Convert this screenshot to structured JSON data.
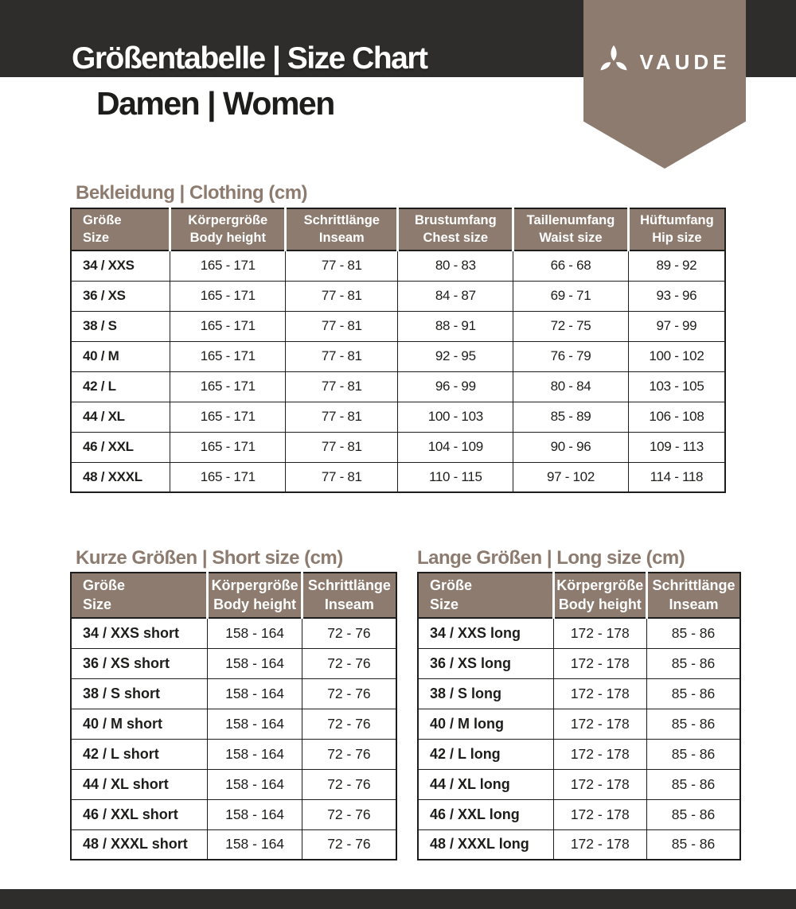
{
  "header": {
    "title": "Größentabelle | Size Chart",
    "subtitle": "Damen | Women",
    "brand": "VAUDE"
  },
  "colors": {
    "band_dark": "#2e2d2b",
    "ribbon_taupe": "#8c7b6e",
    "text_dark": "#1d1d1b",
    "header_text": "#ffffff"
  },
  "tables": {
    "clothing": {
      "title": "Bekleidung | Clothing (cm)",
      "columns": [
        {
          "de": "Größe",
          "en": "Size"
        },
        {
          "de": "Körpergröße",
          "en": "Body height"
        },
        {
          "de": "Schrittlänge",
          "en": "Inseam"
        },
        {
          "de": "Brustumfang",
          "en": "Chest size"
        },
        {
          "de": "Taillenumfang",
          "en": "Waist size"
        },
        {
          "de": "Hüftumfang",
          "en": "Hip size"
        }
      ],
      "rows": [
        [
          "34 / XXS",
          "165 - 171",
          "77 - 81",
          "80 - 83",
          "66 - 68",
          "89 - 92"
        ],
        [
          "36 / XS",
          "165 - 171",
          "77 - 81",
          "84 - 87",
          "69 - 71",
          "93 - 96"
        ],
        [
          "38 / S",
          "165 - 171",
          "77 - 81",
          "88 - 91",
          "72 - 75",
          "97 - 99"
        ],
        [
          "40 / M",
          "165 - 171",
          "77 - 81",
          "92 - 95",
          "76 - 79",
          "100 - 102"
        ],
        [
          "42 / L",
          "165 - 171",
          "77 - 81",
          "96 - 99",
          "80 - 84",
          "103 - 105"
        ],
        [
          "44 / XL",
          "165 - 171",
          "77 - 81",
          "100 - 103",
          "85 - 89",
          "106 - 108"
        ],
        [
          "46 / XXL",
          "165 - 171",
          "77 - 81",
          "104 - 109",
          "90 - 96",
          "109 - 113"
        ],
        [
          "48 / XXXL",
          "165 - 171",
          "77 - 81",
          "110 - 115",
          "97 - 102",
          "114 - 118"
        ]
      ]
    },
    "short": {
      "title": "Kurze Größen | Short size (cm)",
      "columns": [
        {
          "de": "Größe",
          "en": "Size"
        },
        {
          "de": "Körpergröße",
          "en": "Body height"
        },
        {
          "de": "Schrittlänge",
          "en": "Inseam"
        }
      ],
      "rows": [
        [
          "34 / XXS short",
          "158 - 164",
          "72 - 76"
        ],
        [
          "36 / XS short",
          "158 - 164",
          "72 - 76"
        ],
        [
          "38 / S short",
          "158 - 164",
          "72 - 76"
        ],
        [
          "40 / M short",
          "158 - 164",
          "72 - 76"
        ],
        [
          "42 / L short",
          "158 - 164",
          "72 - 76"
        ],
        [
          "44 / XL short",
          "158 - 164",
          "72 - 76"
        ],
        [
          "46 / XXL short",
          "158 - 164",
          "72 - 76"
        ],
        [
          "48 / XXXL short",
          "158 - 164",
          "72 - 76"
        ]
      ]
    },
    "long": {
      "title": "Lange Größen | Long size (cm)",
      "columns": [
        {
          "de": "Größe",
          "en": "Size"
        },
        {
          "de": "Körpergröße",
          "en": "Body height"
        },
        {
          "de": "Schrittlänge",
          "en": "Inseam"
        }
      ],
      "rows": [
        [
          "34 / XXS long",
          "172 - 178",
          "85 - 86"
        ],
        [
          "36 / XS long",
          "172 - 178",
          "85 - 86"
        ],
        [
          "38 / S long",
          "172 - 178",
          "85 - 86"
        ],
        [
          "40 / M long",
          "172 - 178",
          "85 - 86"
        ],
        [
          "42 / L long",
          "172 - 178",
          "85 - 86"
        ],
        [
          "44 / XL long",
          "172 - 178",
          "85 - 86"
        ],
        [
          "46 / XXL long",
          "172 - 178",
          "85 - 86"
        ],
        [
          "48 / XXXL long",
          "172 - 178",
          "85 - 86"
        ]
      ]
    }
  }
}
